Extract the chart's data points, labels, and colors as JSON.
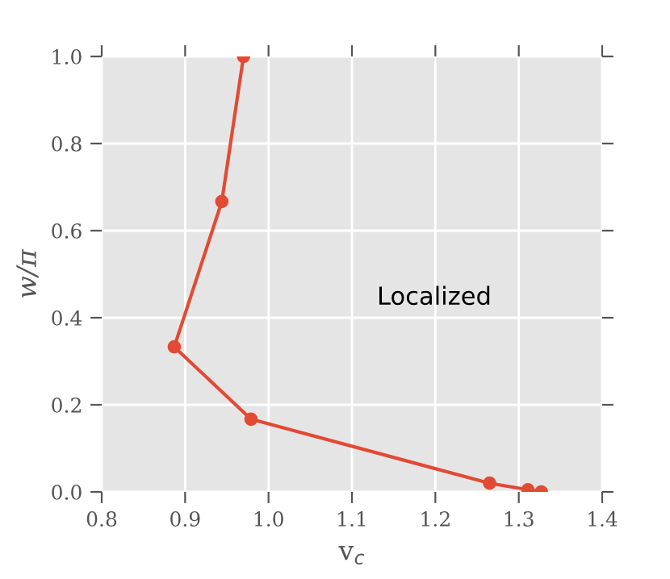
{
  "chart_data": {
    "type": "line",
    "xlabel": "v$_{c}$",
    "ylabel": "w/π",
    "annotations": [
      "Localized"
    ],
    "x": [
      0.97,
      0.944,
      0.887,
      0.979,
      1.265,
      1.311,
      1.327
    ],
    "series": [
      {
        "color": "#e24a33",
        "values": [
          1.0,
          0.667,
          0.333,
          0.167,
          0.02,
          0.005,
          0.0
        ]
      }
    ],
    "xlim": [
      0.8,
      1.4
    ],
    "ylim": [
      0.0,
      1.0
    ],
    "xticks": [
      0.8,
      0.9,
      {
        "value": 1,
        "label": "1.0"
      },
      1.1,
      1.2,
      1.3,
      1.4
    ],
    "yticks": [
      {
        "value": 0,
        "label": "0.0"
      },
      0.2,
      0.4,
      0.6,
      0.8,
      {
        "value": 1,
        "label": "1.0"
      }
    ],
    "grid": true,
    "marker": "circle",
    "line_style": "solid"
  }
}
